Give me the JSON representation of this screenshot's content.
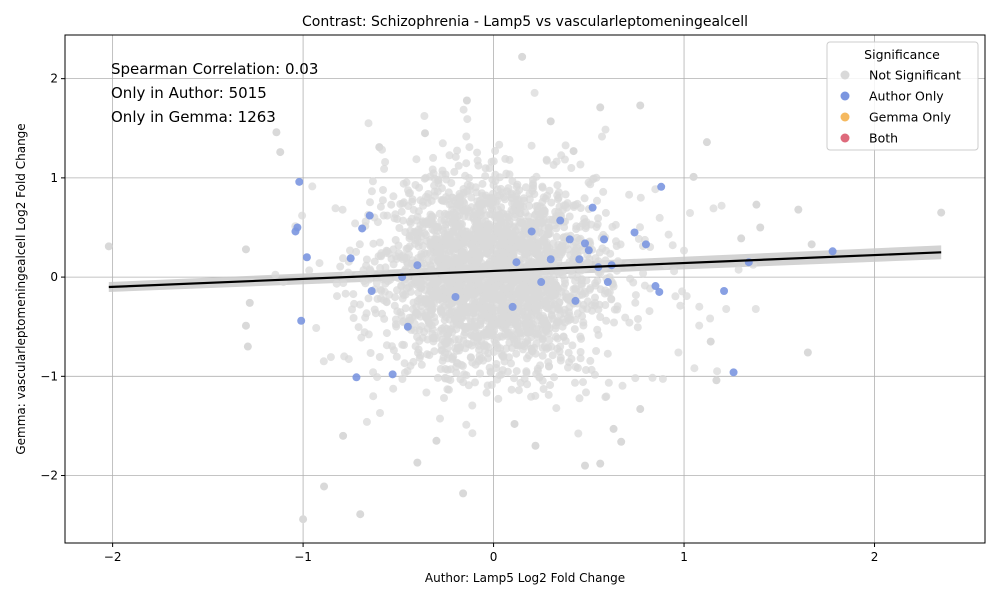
{
  "chart_data": {
    "type": "scatter",
    "title": "Contrast: Schizophrenia - Lamp5 vs vascularleptomeningealcell",
    "xlabel": "Author: Lamp5 Log2 Fold Change",
    "ylabel": "Gemma: vascularleptomeningealcell Log2 Fold Change",
    "xlim": [
      -2.25,
      2.58
    ],
    "ylim": [
      -2.68,
      2.44
    ],
    "xticks": [
      -2,
      -1,
      0,
      1,
      2
    ],
    "xtick_labels": [
      "−2",
      "−1",
      "0",
      "1",
      "2"
    ],
    "yticks": [
      -2,
      -1,
      0,
      1,
      2
    ],
    "ytick_labels": [
      "−2",
      "−1",
      "0",
      "1",
      "2"
    ],
    "grid": true,
    "annotations": [
      "Spearman Correlation: 0.03",
      "Only in Author: 5015",
      "Only in Gemma: 1263"
    ],
    "legend": {
      "title": "Significance",
      "placement": "top-right",
      "entries": [
        {
          "label": "Not Significant",
          "color": "#d9d9d9"
        },
        {
          "label": "Author Only",
          "color": "#7b96e0"
        },
        {
          "label": "Gemma Only",
          "color": "#f5b95f"
        },
        {
          "label": "Both",
          "color": "#de6a7c"
        }
      ]
    },
    "regression": {
      "x": [
        -2.02,
        2.35
      ],
      "y": [
        -0.1,
        0.25
      ],
      "ci_halfwidth": [
        0.05,
        0.07
      ]
    },
    "series": [
      {
        "name": "Author Only",
        "color": "#7b96e0",
        "points": [
          [
            -1.02,
            0.96
          ],
          [
            -1.03,
            0.5
          ],
          [
            -1.04,
            0.46
          ],
          [
            -0.98,
            0.2
          ],
          [
            -1.01,
            -0.44
          ],
          [
            -0.65,
            0.62
          ],
          [
            -0.69,
            0.49
          ],
          [
            -0.75,
            0.19
          ],
          [
            -0.72,
            -1.01
          ],
          [
            -0.53,
            -0.98
          ],
          [
            -0.64,
            -0.14
          ],
          [
            -0.48,
            0.0
          ],
          [
            -0.4,
            0.12
          ],
          [
            -0.45,
            -0.5
          ],
          [
            0.35,
            0.57
          ],
          [
            0.48,
            0.34
          ],
          [
            0.5,
            0.27
          ],
          [
            0.52,
            0.7
          ],
          [
            0.58,
            0.38
          ],
          [
            0.62,
            0.12
          ],
          [
            0.74,
            0.45
          ],
          [
            0.8,
            0.33
          ],
          [
            0.88,
            0.91
          ],
          [
            0.85,
            -0.09
          ],
          [
            0.87,
            -0.15
          ],
          [
            1.21,
            -0.14
          ],
          [
            1.26,
            -0.96
          ],
          [
            1.34,
            0.15
          ],
          [
            1.78,
            0.26
          ],
          [
            0.45,
            0.18
          ],
          [
            0.43,
            -0.24
          ],
          [
            0.3,
            0.18
          ],
          [
            0.25,
            -0.05
          ],
          [
            0.12,
            0.15
          ],
          [
            0.2,
            0.46
          ],
          [
            -0.2,
            -0.2
          ],
          [
            0.1,
            -0.3
          ],
          [
            0.6,
            -0.05
          ],
          [
            0.4,
            0.38
          ],
          [
            0.55,
            0.1
          ]
        ]
      },
      {
        "name": "Not Significant",
        "color": "#d9d9d9",
        "points": [
          [
            -2.02,
            0.31
          ],
          [
            -1.3,
            0.28
          ],
          [
            -1.3,
            -0.49
          ],
          [
            -1.28,
            -0.26
          ],
          [
            -1.29,
            -0.7
          ],
          [
            -1.14,
            1.46
          ],
          [
            -1.12,
            1.26
          ],
          [
            -1.0,
            -2.44
          ],
          [
            -0.7,
            -2.39
          ],
          [
            -0.89,
            -2.11
          ],
          [
            -0.79,
            -1.6
          ],
          [
            -0.16,
            -2.18
          ],
          [
            -0.4,
            -1.87
          ],
          [
            0.48,
            -1.9
          ],
          [
            0.56,
            -1.88
          ],
          [
            0.67,
            -1.66
          ],
          [
            0.15,
            2.22
          ],
          [
            0.77,
            1.73
          ],
          [
            0.56,
            1.71
          ],
          [
            2.35,
            0.65
          ],
          [
            1.65,
            -0.76
          ],
          [
            1.6,
            0.68
          ],
          [
            1.67,
            0.33
          ],
          [
            1.4,
            0.5
          ],
          [
            1.38,
            0.73
          ],
          [
            1.12,
            1.36
          ],
          [
            1.05,
            1.01
          ],
          [
            1.14,
            -0.65
          ],
          [
            1.17,
            -1.04
          ],
          [
            1.3,
            0.39
          ],
          [
            -0.14,
            1.78
          ],
          [
            0.3,
            1.57
          ],
          [
            -0.36,
            1.45
          ],
          [
            0.42,
            1.27
          ],
          [
            -0.6,
            1.31
          ],
          [
            0.11,
            -1.48
          ],
          [
            0.22,
            -1.7
          ],
          [
            -0.3,
            -1.65
          ],
          [
            0.63,
            -1.53
          ],
          [
            0.77,
            -1.33
          ]
        ]
      }
    ]
  }
}
